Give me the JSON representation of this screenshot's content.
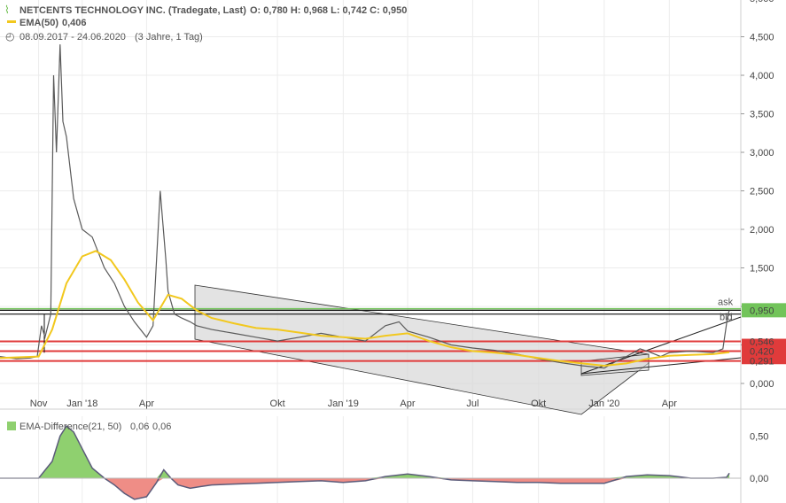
{
  "header": {
    "title": "NETCENTS TECHNOLOGY INC. (Tradegate, Last)",
    "ohlc": "O: 0,780  H: 0,968  L: 0,742  C: 0,950",
    "ema_label": "EMA(50)",
    "ema_value": "0,406",
    "range": "08.09.2017 - 24.06.2020",
    "range_detail": "(3 Jahre, 1 Tag)"
  },
  "sub_header": {
    "label": "EMA-Difference(21, 50)",
    "value1": "0,06",
    "value2": "0,06"
  },
  "colors": {
    "price": "#5a5a5a",
    "ema": "#f2c81e",
    "ask": "#72c45a",
    "bid": "#e03b3b",
    "support": "#e03b3b",
    "channel": "#d9d9d9",
    "osc_pos": "#8fd06f",
    "osc_neg": "#ef8d86"
  },
  "price_labels": {
    "ask": "ask",
    "bid": "bid",
    "last": "0,950",
    "level_1": "0,546",
    "level_2": "0,420",
    "level_3": "0,291"
  },
  "chart_data": [
    {
      "type": "line",
      "title": "NETCENTS TECHNOLOGY INC. (Tradegate, Last)",
      "x_tick_labels": [
        "Nov",
        "Jan '18",
        "Apr",
        "Okt",
        "Jan '19",
        "Apr",
        "Jul",
        "Okt",
        "Jan '20",
        "Apr"
      ],
      "y_tick_labels": [
        "0,000",
        "0,500",
        "1,000",
        "1,500",
        "2,000",
        "2,500",
        "3,000",
        "3,500",
        "4,000",
        "4,500",
        "5,000"
      ],
      "ylim": [
        0,
        5.0
      ],
      "grid": true,
      "series": [
        {
          "name": "Last",
          "x": [
            "2017-09-08",
            "2017-10-01",
            "2017-10-20",
            "2017-10-30",
            "2017-11-05",
            "2017-11-10",
            "2017-11-18",
            "2017-11-22",
            "2017-11-26",
            "2017-12-01",
            "2017-12-05",
            "2017-12-10",
            "2017-12-20",
            "2018-01-01",
            "2018-01-15",
            "2018-02-01",
            "2018-02-15",
            "2018-03-01",
            "2018-03-15",
            "2018-04-01",
            "2018-04-10",
            "2018-04-20",
            "2018-04-28",
            "2018-05-01",
            "2018-05-10",
            "2018-05-20",
            "2018-06-01",
            "2018-06-10",
            "2018-07-01",
            "2018-08-01",
            "2018-09-01",
            "2018-10-01",
            "2018-11-01",
            "2018-12-01",
            "2019-01-01",
            "2019-02-01",
            "2019-03-01",
            "2019-03-20",
            "2019-04-01",
            "2019-05-01",
            "2019-06-01",
            "2019-07-01",
            "2019-08-01",
            "2019-09-01",
            "2019-10-01",
            "2019-11-01",
            "2019-12-01",
            "2020-01-01",
            "2020-01-20",
            "2020-02-01",
            "2020-02-20",
            "2020-03-01",
            "2020-03-20",
            "2020-04-01",
            "2020-05-01",
            "2020-06-01",
            "2020-06-15",
            "2020-06-22",
            "2020-06-24"
          ],
          "y": [
            0.35,
            0.32,
            0.33,
            0.35,
            0.75,
            0.6,
            0.9,
            4.0,
            3.0,
            4.4,
            3.4,
            3.2,
            2.4,
            2.0,
            1.9,
            1.5,
            1.3,
            1.0,
            0.8,
            0.6,
            0.75,
            2.5,
            1.6,
            1.2,
            0.9,
            0.85,
            0.8,
            0.75,
            0.7,
            0.65,
            0.6,
            0.55,
            0.6,
            0.65,
            0.6,
            0.55,
            0.75,
            0.8,
            0.68,
            0.6,
            0.5,
            0.46,
            0.43,
            0.38,
            0.32,
            0.27,
            0.23,
            0.2,
            0.3,
            0.35,
            0.45,
            0.42,
            0.35,
            0.4,
            0.42,
            0.4,
            0.45,
            0.9,
            0.95
          ]
        },
        {
          "name": "EMA(50)",
          "x": [
            "2017-09-08",
            "2017-11-01",
            "2017-11-20",
            "2017-12-10",
            "2018-01-01",
            "2018-01-20",
            "2018-02-10",
            "2018-03-01",
            "2018-03-20",
            "2018-04-10",
            "2018-05-01",
            "2018-05-20",
            "2018-06-10",
            "2018-07-01",
            "2018-08-01",
            "2018-09-01",
            "2018-10-01",
            "2018-11-01",
            "2018-12-01",
            "2019-01-01",
            "2019-02-01",
            "2019-03-01",
            "2019-04-01",
            "2019-05-01",
            "2019-06-01",
            "2019-07-01",
            "2019-08-01",
            "2019-09-01",
            "2019-10-01",
            "2019-11-01",
            "2019-12-01",
            "2020-01-01",
            "2020-02-01",
            "2020-03-01",
            "2020-04-01",
            "2020-05-01",
            "2020-06-01",
            "2020-06-24"
          ],
          "y": [
            0.33,
            0.35,
            0.7,
            1.3,
            1.65,
            1.72,
            1.6,
            1.35,
            1.05,
            0.82,
            1.15,
            1.1,
            0.95,
            0.85,
            0.78,
            0.72,
            0.7,
            0.66,
            0.62,
            0.6,
            0.58,
            0.62,
            0.65,
            0.55,
            0.47,
            0.42,
            0.4,
            0.37,
            0.33,
            0.29,
            0.26,
            0.23,
            0.26,
            0.32,
            0.36,
            0.37,
            0.38,
            0.406
          ]
        }
      ]
    },
    {
      "type": "area",
      "title": "EMA-Difference(21, 50)",
      "x_tick_labels": [],
      "y_tick_labels": [
        "0,00",
        "0,50"
      ],
      "ylim": [
        -0.33,
        0.7
      ],
      "series": [
        {
          "name": "EMA-Difference(21, 50)",
          "x": [
            "2017-09-08",
            "2017-11-01",
            "2017-11-20",
            "2017-12-01",
            "2017-12-10",
            "2017-12-20",
            "2018-01-01",
            "2018-01-15",
            "2018-02-01",
            "2018-02-15",
            "2018-03-01",
            "2018-03-15",
            "2018-04-01",
            "2018-04-15",
            "2018-04-25",
            "2018-05-05",
            "2018-05-15",
            "2018-06-01",
            "2018-06-15",
            "2018-07-01",
            "2018-08-01",
            "2018-09-01",
            "2018-10-01",
            "2018-11-01",
            "2018-12-01",
            "2019-01-01",
            "2019-02-01",
            "2019-03-01",
            "2019-04-01",
            "2019-05-01",
            "2019-06-01",
            "2019-07-01",
            "2019-08-01",
            "2019-09-01",
            "2019-10-01",
            "2019-11-01",
            "2019-12-01",
            "2020-01-01",
            "2020-02-01",
            "2020-03-01",
            "2020-04-01",
            "2020-05-01",
            "2020-06-01",
            "2020-06-20",
            "2020-06-24"
          ],
          "y": [
            0.0,
            0.0,
            0.2,
            0.5,
            0.62,
            0.55,
            0.35,
            0.12,
            0.0,
            -0.08,
            -0.18,
            -0.25,
            -0.22,
            -0.05,
            0.1,
            0.0,
            -0.08,
            -0.12,
            -0.1,
            -0.08,
            -0.07,
            -0.06,
            -0.05,
            -0.04,
            -0.03,
            -0.05,
            -0.03,
            0.02,
            0.05,
            0.02,
            -0.02,
            -0.03,
            -0.04,
            -0.05,
            -0.05,
            -0.06,
            -0.06,
            -0.06,
            0.02,
            0.04,
            0.03,
            0.0,
            0.0,
            0.01,
            0.06
          ]
        }
      ]
    }
  ]
}
